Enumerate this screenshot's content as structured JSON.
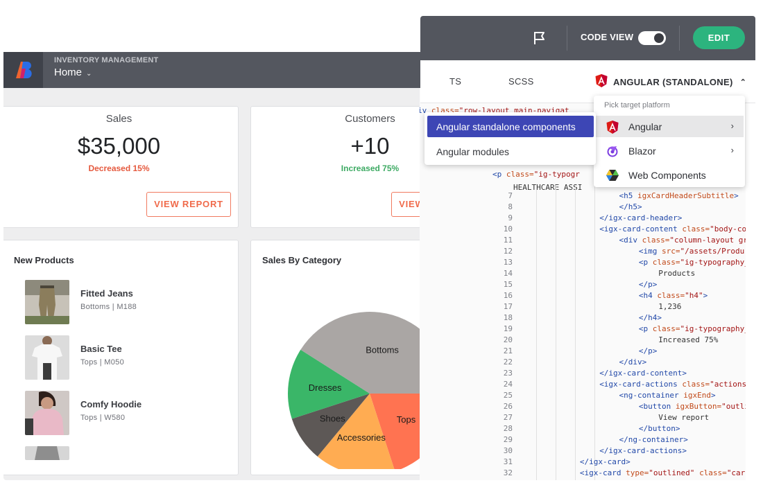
{
  "app": {
    "overline": "INVENTORY MANAGEMENT",
    "nav_label": "Home",
    "nav_chevron": "⌄"
  },
  "kpis": [
    {
      "title": "Sales",
      "value": "$35,000",
      "delta": "Decreased 15%",
      "delta_color": "#e5593e",
      "button": "VIEW REPORT"
    },
    {
      "title": "Customers",
      "value": "+10",
      "delta": "Increased 75%",
      "delta_color": "#3daa63",
      "button": "VIEW REPORT"
    }
  ],
  "new_products": {
    "title": "New Products",
    "items": [
      {
        "name": "Fitted Jeans",
        "meta": "Bottoms | M188",
        "icon": "jeans-photo"
      },
      {
        "name": "Basic Tee",
        "meta": "Tops | M050",
        "icon": "tee-photo"
      },
      {
        "name": "Comfy Hoodie",
        "meta": "Tops | W580",
        "icon": "hoodie-photo"
      }
    ]
  },
  "sales_by_category": {
    "title": "Sales By Category"
  },
  "chart_data": {
    "type": "pie",
    "title": "Sales By Category",
    "categories": [
      "Tops",
      "Accessories",
      "Shoes",
      "Dresses",
      "Bottoms"
    ],
    "values": [
      20,
      16,
      9,
      14,
      41
    ],
    "colors": [
      "#ff7351",
      "#ffac52",
      "#5d5856",
      "#3ab668",
      "#aaa6a4"
    ]
  },
  "editor": {
    "code_view_label": "CODE VIEW",
    "code_view_on": true,
    "edit_label": "EDIT",
    "flag_icon": "flag-icon",
    "tabs": [
      "TS",
      "SCSS"
    ],
    "platform_tab": "ANGULAR (STANDALONE)",
    "platform_caret": "⌃"
  },
  "platform_menu": {
    "header": "Pick target platform",
    "items": [
      {
        "label": "Angular",
        "icon": "angular-icon",
        "active": true
      },
      {
        "label": "Blazor",
        "icon": "blazor-icon",
        "active": false
      },
      {
        "label": "Web Components",
        "icon": "web-components-icon",
        "active": false
      }
    ],
    "chevron": "›"
  },
  "variant_menu": {
    "items": [
      {
        "label": "Angular standalone components",
        "active": true
      },
      {
        "label": "Angular modules",
        "active": false
      }
    ]
  },
  "code": {
    "partial_top": [
      {
        "tokens": [
          [
            "iv ",
            "c-tag"
          ],
          [
            "class=",
            "c-attr"
          ],
          [
            "\"row-layout main-navigat",
            "c-str"
          ]
        ]
      },
      {
        "tokens": [
          [
            "<p ",
            "c-tag"
          ],
          [
            "class=",
            "c-attr"
          ],
          [
            "\"ig-typogr",
            "c-str"
          ]
        ]
      },
      {
        "tokens": [
          [
            "HEALTHCARE ASSI",
            "c-plain"
          ]
        ]
      }
    ],
    "lines": [
      {
        "n": "7",
        "indent": 9,
        "tokens": [
          [
            "<h5 ",
            "c-tag"
          ],
          [
            "igxCardHeaderSubtitle",
            "c-attr"
          ],
          [
            ">",
            "c-tag"
          ]
        ]
      },
      {
        "n": "8",
        "indent": 9,
        "tokens": [
          [
            "</h5>",
            "c-tag"
          ]
        ]
      },
      {
        "n": "9",
        "indent": 7,
        "tokens": [
          [
            "</igx-card-header>",
            "c-tag"
          ]
        ]
      },
      {
        "n": "10",
        "indent": 7,
        "tokens": [
          [
            "<igx-card-content ",
            "c-tag"
          ],
          [
            "class=",
            "c-attr"
          ],
          [
            "\"body-co",
            "c-str"
          ]
        ]
      },
      {
        "n": "11",
        "indent": 9,
        "tokens": [
          [
            "<div ",
            "c-tag"
          ],
          [
            "class=",
            "c-attr"
          ],
          [
            "\"column-layout gr",
            "c-str"
          ]
        ]
      },
      {
        "n": "12",
        "indent": 11,
        "tokens": [
          [
            "<img ",
            "c-tag"
          ],
          [
            "src=",
            "c-attr"
          ],
          [
            "\"/assets/Produ",
            "c-str"
          ]
        ]
      },
      {
        "n": "13",
        "indent": 11,
        "tokens": [
          [
            "<p ",
            "c-tag"
          ],
          [
            "class=",
            "c-attr"
          ],
          [
            "\"ig-typography_",
            "c-str"
          ]
        ]
      },
      {
        "n": "14",
        "indent": 13,
        "tokens": [
          [
            "Products",
            "c-plain"
          ]
        ]
      },
      {
        "n": "15",
        "indent": 11,
        "tokens": [
          [
            "</p>",
            "c-tag"
          ]
        ]
      },
      {
        "n": "16",
        "indent": 11,
        "tokens": [
          [
            "<h4 ",
            "c-tag"
          ],
          [
            "class=",
            "c-attr"
          ],
          [
            "\"h4\"",
            "c-str"
          ],
          [
            ">",
            "c-tag"
          ]
        ]
      },
      {
        "n": "17",
        "indent": 13,
        "tokens": [
          [
            "1,236",
            "c-plain"
          ]
        ]
      },
      {
        "n": "18",
        "indent": 11,
        "tokens": [
          [
            "</h4>",
            "c-tag"
          ]
        ]
      },
      {
        "n": "19",
        "indent": 11,
        "tokens": [
          [
            "<p ",
            "c-tag"
          ],
          [
            "class=",
            "c-attr"
          ],
          [
            "\"ig-typography_",
            "c-str"
          ]
        ]
      },
      {
        "n": "20",
        "indent": 13,
        "tokens": [
          [
            "Increased 75%",
            "c-plain"
          ]
        ]
      },
      {
        "n": "21",
        "indent": 11,
        "tokens": [
          [
            "</p>",
            "c-tag"
          ]
        ]
      },
      {
        "n": "22",
        "indent": 9,
        "tokens": [
          [
            "</div>",
            "c-tag"
          ]
        ]
      },
      {
        "n": "23",
        "indent": 7,
        "tokens": [
          [
            "</igx-card-content>",
            "c-tag"
          ]
        ]
      },
      {
        "n": "24",
        "indent": 7,
        "tokens": [
          [
            "<igx-card-actions ",
            "c-tag"
          ],
          [
            "class=",
            "c-attr"
          ],
          [
            "\"actions",
            "c-str"
          ]
        ]
      },
      {
        "n": "25",
        "indent": 9,
        "tokens": [
          [
            "<ng-container ",
            "c-tag"
          ],
          [
            "igxEnd",
            "c-attr"
          ],
          [
            ">",
            "c-tag"
          ]
        ]
      },
      {
        "n": "26",
        "indent": 11,
        "tokens": [
          [
            "<button ",
            "c-tag"
          ],
          [
            "igxButton=",
            "c-attr"
          ],
          [
            "\"outli",
            "c-str"
          ]
        ]
      },
      {
        "n": "27",
        "indent": 13,
        "tokens": [
          [
            "View report",
            "c-plain"
          ]
        ]
      },
      {
        "n": "28",
        "indent": 11,
        "tokens": [
          [
            "</button>",
            "c-tag"
          ]
        ]
      },
      {
        "n": "29",
        "indent": 9,
        "tokens": [
          [
            "</ng-container>",
            "c-tag"
          ]
        ]
      },
      {
        "n": "30",
        "indent": 7,
        "tokens": [
          [
            "</igx-card-actions>",
            "c-tag"
          ]
        ]
      },
      {
        "n": "31",
        "indent": 5,
        "tokens": [
          [
            "</igx-card>",
            "c-tag"
          ]
        ]
      },
      {
        "n": "32",
        "indent": 5,
        "tokens": [
          [
            "<igx-card ",
            "c-tag"
          ],
          [
            "type=",
            "c-attr"
          ],
          [
            "\"outlined\"",
            "c-str"
          ],
          [
            " ",
            "c-plain"
          ],
          [
            "class=",
            "c-attr"
          ],
          [
            "\"car",
            "c-str"
          ]
        ]
      }
    ]
  }
}
